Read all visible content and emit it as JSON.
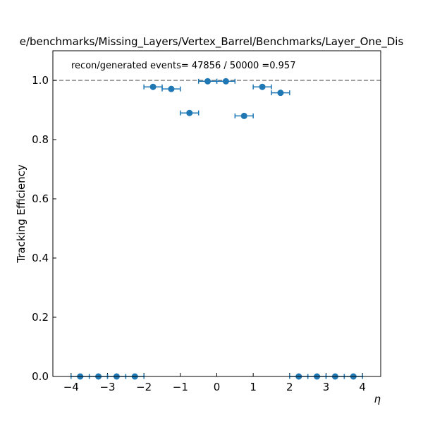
{
  "figure": {
    "title": "e/benchmarks/Missing_Layers/Vertex_Barrel/Benchmarks/Layer_One_Dis"
  },
  "chart_data": {
    "type": "scatter",
    "title": "e/benchmarks/Missing_Layers/Vertex_Barrel/Benchmarks/Layer_One_Dis",
    "xlabel": "η",
    "ylabel": "Tracking Efficiency",
    "xlim": [
      -4.5,
      4.5
    ],
    "ylim": [
      0.0,
      1.1
    ],
    "xticks": [
      -4,
      -3,
      -2,
      -1,
      0,
      1,
      2,
      3,
      4
    ],
    "xtick_labels": [
      "−4",
      "−3",
      "−2",
      "−1",
      "0",
      "1",
      "2",
      "3",
      "4"
    ],
    "yticks": [
      0.0,
      0.2,
      0.4,
      0.6,
      0.8,
      1.0
    ],
    "ytick_labels": [
      "0.0",
      "0.2",
      "0.4",
      "0.6",
      "0.8",
      "1.0"
    ],
    "grid": false,
    "marker_color": "#1f77b4",
    "reference_line": {
      "y": 1.0,
      "style": "dashed",
      "color": "#808080"
    },
    "annotation": "recon/generated events= 47856 / 50000 =0.957",
    "points": [
      {
        "x": -3.75,
        "y": 0.0,
        "xerr": 0.25
      },
      {
        "x": -3.25,
        "y": 0.0,
        "xerr": 0.25
      },
      {
        "x": -2.75,
        "y": 0.0,
        "xerr": 0.25
      },
      {
        "x": -2.25,
        "y": 0.0,
        "xerr": 0.25
      },
      {
        "x": -1.75,
        "y": 0.978,
        "xerr": 0.25
      },
      {
        "x": -1.25,
        "y": 0.971,
        "xerr": 0.25
      },
      {
        "x": -0.75,
        "y": 0.89,
        "xerr": 0.25
      },
      {
        "x": -0.25,
        "y": 0.997,
        "xerr": 0.25
      },
      {
        "x": 0.25,
        "y": 0.997,
        "xerr": 0.25
      },
      {
        "x": 0.75,
        "y": 0.88,
        "xerr": 0.25
      },
      {
        "x": 1.25,
        "y": 0.978,
        "xerr": 0.25
      },
      {
        "x": 1.75,
        "y": 0.958,
        "xerr": 0.25
      },
      {
        "x": 2.25,
        "y": 0.0,
        "xerr": 0.25
      },
      {
        "x": 2.75,
        "y": 0.0,
        "xerr": 0.25
      },
      {
        "x": 3.25,
        "y": 0.0,
        "xerr": 0.25
      },
      {
        "x": 3.75,
        "y": 0.0,
        "xerr": 0.25
      }
    ]
  }
}
